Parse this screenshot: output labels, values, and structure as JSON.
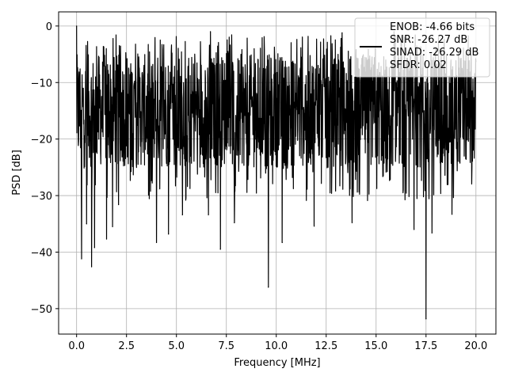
{
  "chart_data": {
    "type": "line",
    "title": "",
    "xlabel": "Frequency [MHz]",
    "ylabel": "PSD [dB]",
    "xlim": [
      -0.9,
      21.0
    ],
    "ylim": [
      -54.5,
      2.5
    ],
    "x_ticks": [
      0.0,
      2.5,
      5.0,
      7.5,
      10.0,
      12.5,
      15.0,
      17.5,
      20.0
    ],
    "x_tick_labels": [
      "0.0",
      "2.5",
      "5.0",
      "7.5",
      "10.0",
      "12.5",
      "15.0",
      "17.5",
      "20.0"
    ],
    "y_ticks": [
      0,
      -10,
      -20,
      -30,
      -40,
      -50
    ],
    "y_tick_labels": [
      "0",
      "−10",
      "−20",
      "−30",
      "−40",
      "−50"
    ],
    "grid": true,
    "legend_position": "upper-right",
    "legend_lines": [
      "ENOB: -4.66 bits",
      "SNR: -26.27 dB",
      "SINAD: -26.29 dB",
      "SFDR: 0.02"
    ],
    "series": [
      {
        "color": "#000000",
        "x_range": [
          0.0,
          20.0
        ],
        "band_range_db": [
          -25,
          -5
        ],
        "peaks": [
          {
            "x": 0.0,
            "y": 0.0
          },
          {
            "x": 6.7,
            "y": -1.0
          },
          {
            "x": 13.3,
            "y": -1.2
          },
          {
            "x": 15.9,
            "y": -1.0
          }
        ],
        "dips": [
          {
            "x": 0.25,
            "y": -41.2
          },
          {
            "x": 0.5,
            "y": -35.0
          },
          {
            "x": 0.75,
            "y": -42.6
          },
          {
            "x": 0.9,
            "y": -39.2
          },
          {
            "x": 1.5,
            "y": -37.7
          },
          {
            "x": 1.8,
            "y": -35.5
          },
          {
            "x": 2.1,
            "y": -31.6
          },
          {
            "x": 4.0,
            "y": -38.3
          },
          {
            "x": 4.6,
            "y": -36.8
          },
          {
            "x": 5.3,
            "y": -33.4
          },
          {
            "x": 6.6,
            "y": -33.4
          },
          {
            "x": 7.2,
            "y": -39.5
          },
          {
            "x": 7.9,
            "y": -34.8
          },
          {
            "x": 9.6,
            "y": -46.2
          },
          {
            "x": 10.3,
            "y": -38.3
          },
          {
            "x": 11.9,
            "y": -35.4
          },
          {
            "x": 13.8,
            "y": -34.8
          },
          {
            "x": 16.9,
            "y": -36.0
          },
          {
            "x": 17.5,
            "y": -51.8
          },
          {
            "x": 17.8,
            "y": -36.6
          },
          {
            "x": 18.8,
            "y": -33.3
          }
        ]
      }
    ]
  }
}
